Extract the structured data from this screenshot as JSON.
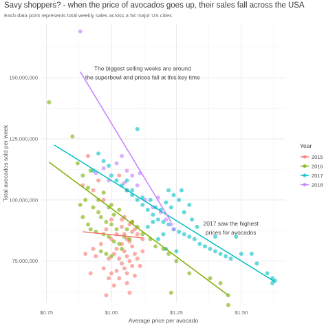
{
  "chart_data": {
    "type": "scatter",
    "title": "Savy shoppers? - when the price of avocados goes up, their sales fall across the USA",
    "subtitle": "Each data point represents total weekly sales across a 54 major US cities",
    "xlabel": "Average price per avocado",
    "ylabel": "Total avocados sold per week",
    "xlim": [
      0.73,
      1.67
    ],
    "ylim": [
      58000000,
      172000000
    ],
    "x_ticks": [
      0.75,
      1.0,
      1.25,
      1.5
    ],
    "x_tick_labels": [
      "$0.75",
      "$1.00",
      "$1.25",
      "$1.50"
    ],
    "y_ticks": [
      75000000,
      100000000,
      125000000,
      150000000
    ],
    "y_tick_labels": [
      "75,000,000",
      "100,000,000",
      "125,000,000",
      "150,000,000"
    ],
    "grid": true,
    "legend": {
      "title": "Year",
      "position": "right"
    },
    "annotations": [
      {
        "lines": [
          "The biggest selling weeks are around",
          "the superbowl and prices fall at this key time"
        ],
        "x": 1.12,
        "y": 153000000
      },
      {
        "lines": [
          "2017 saw the highest",
          "prices for avocados"
        ],
        "x": 1.46,
        "y": 89500000
      }
    ],
    "series": [
      {
        "name": "2015",
        "color": "#F8766D",
        "points": [
          [
            0.91,
            118
          ],
          [
            0.95,
            108
          ],
          [
            0.93,
            104
          ],
          [
            0.89,
            106
          ],
          [
            0.97,
            100
          ],
          [
            1.03,
            110
          ],
          [
            1.06,
            104
          ],
          [
            0.98,
            88
          ],
          [
            1.04,
            89
          ],
          [
            1.07,
            90
          ],
          [
            1.05,
            86
          ],
          [
            1.08,
            87
          ],
          [
            1.06,
            84
          ],
          [
            1.09,
            88
          ],
          [
            1.04,
            82
          ],
          [
            1.07,
            83
          ],
          [
            1.02,
            80
          ],
          [
            1.05,
            79
          ],
          [
            1.08,
            81
          ],
          [
            1.01,
            78
          ],
          [
            1.03,
            76
          ],
          [
            1.06,
            77
          ],
          [
            1.09,
            78
          ],
          [
            0.99,
            76
          ],
          [
            1.04,
            74
          ],
          [
            1.07,
            75
          ],
          [
            1.05,
            72
          ],
          [
            1.08,
            73
          ],
          [
            1.02,
            71
          ],
          [
            1.06,
            70
          ],
          [
            1.1,
            76
          ],
          [
            1.12,
            79
          ],
          [
            0.9,
            78
          ],
          [
            0.94,
            77
          ],
          [
            0.97,
            72
          ],
          [
            1.0,
            70
          ],
          [
            1.03,
            68
          ],
          [
            0.99,
            68
          ],
          [
            1.06,
            66
          ],
          [
            1.07,
            62
          ],
          [
            0.98,
            61
          ],
          [
            1.01,
            65
          ],
          [
            1.09,
            69
          ],
          [
            1.11,
            73
          ],
          [
            0.96,
            82
          ],
          [
            1.0,
            84
          ],
          [
            1.02,
            86
          ],
          [
            1.04,
            92
          ],
          [
            1.1,
            86
          ],
          [
            1.12,
            84
          ],
          [
            0.93,
            80
          ],
          [
            1.05,
            93
          ],
          [
            1.08,
            91
          ],
          [
            0.92,
            70
          ],
          [
            1.0,
            92
          ]
        ]
      },
      {
        "name": "2016",
        "color": "#7CAE00",
        "points": [
          [
            0.76,
            140
          ],
          [
            0.85,
            126
          ],
          [
            0.87,
            115
          ],
          [
            0.89,
            110
          ],
          [
            0.91,
            105
          ],
          [
            0.92,
            112
          ],
          [
            0.9,
            100
          ],
          [
            0.93,
            97
          ],
          [
            0.95,
            95
          ],
          [
            0.88,
            98
          ],
          [
            0.96,
            93
          ],
          [
            0.98,
            91
          ],
          [
            1.0,
            90
          ],
          [
            1.02,
            88
          ],
          [
            0.97,
            86
          ],
          [
            0.99,
            85
          ],
          [
            1.01,
            83
          ],
          [
            0.94,
            87
          ],
          [
            1.03,
            82
          ],
          [
            1.04,
            80
          ],
          [
            0.96,
            79
          ],
          [
            0.98,
            78
          ],
          [
            1.0,
            77
          ],
          [
            0.91,
            90
          ],
          [
            0.92,
            88
          ],
          [
            0.89,
            93
          ],
          [
            1.05,
            85
          ],
          [
            1.06,
            88
          ],
          [
            1.07,
            84
          ],
          [
            0.99,
            97
          ],
          [
            1.01,
            94
          ],
          [
            1.03,
            96
          ],
          [
            1.08,
            91
          ],
          [
            1.1,
            89
          ],
          [
            1.12,
            86
          ],
          [
            1.15,
            84
          ],
          [
            1.17,
            81
          ],
          [
            1.2,
            80
          ],
          [
            1.22,
            78
          ],
          [
            1.25,
            75
          ],
          [
            1.3,
            70
          ],
          [
            1.38,
            68
          ],
          [
            1.42,
            66
          ],
          [
            1.45,
            61
          ],
          [
            1.45,
            57
          ],
          [
            1.23,
            62
          ],
          [
            0.97,
            103
          ],
          [
            0.95,
            100
          ],
          [
            1.0,
            98
          ]
        ]
      },
      {
        "name": "2017",
        "color": "#00BFC4",
        "points": [
          [
            1.1,
            129
          ],
          [
            0.95,
            119
          ],
          [
            0.97,
            116
          ],
          [
            0.99,
            114
          ],
          [
            0.93,
            112
          ],
          [
            1.0,
            110
          ],
          [
            1.02,
            108
          ],
          [
            1.04,
            106
          ],
          [
            1.06,
            104
          ],
          [
            1.08,
            102
          ],
          [
            1.1,
            100
          ],
          [
            1.12,
            98
          ],
          [
            1.14,
            96
          ],
          [
            1.16,
            94
          ],
          [
            1.18,
            92
          ],
          [
            1.2,
            91
          ],
          [
            1.22,
            90
          ],
          [
            1.24,
            88
          ],
          [
            1.26,
            87
          ],
          [
            1.28,
            86
          ],
          [
            1.3,
            85
          ],
          [
            1.32,
            84
          ],
          [
            1.34,
            82
          ],
          [
            1.36,
            81
          ],
          [
            1.38,
            80
          ],
          [
            1.4,
            79
          ],
          [
            1.42,
            78
          ],
          [
            1.44,
            77
          ],
          [
            1.46,
            76
          ],
          [
            1.5,
            78
          ],
          [
            1.56,
            74
          ],
          [
            1.6,
            70
          ],
          [
            1.62,
            68
          ],
          [
            1.63,
            67
          ],
          [
            1.62,
            66
          ],
          [
            1.22,
            104
          ],
          [
            1.24,
            102
          ],
          [
            1.26,
            100
          ],
          [
            1.23,
            97
          ],
          [
            1.28,
            95
          ],
          [
            1.19,
            96
          ],
          [
            1.21,
            99
          ],
          [
            1.27,
            104
          ],
          [
            1.2,
            86
          ],
          [
            1.18,
            84
          ],
          [
            1.21,
            80
          ],
          [
            1.25,
            79
          ],
          [
            1.14,
            89
          ],
          [
            1.16,
            91
          ],
          [
            1.12,
            101
          ],
          [
            1.08,
            104
          ],
          [
            1.06,
            108
          ],
          [
            1.3,
            98
          ],
          [
            1.31,
            92
          ],
          [
            1.33,
            89
          ],
          [
            1.4,
            85
          ],
          [
            1.48,
            85
          ],
          [
            1.54,
            78
          ],
          [
            1.17,
            97
          ],
          [
            1.15,
            100
          ]
        ]
      },
      {
        "name": "2018",
        "color": "#C77CFF",
        "points": [
          [
            0.88,
            169
          ],
          [
            0.94,
            111
          ],
          [
            0.99,
            108
          ],
          [
            1.02,
            115
          ],
          [
            1.04,
            118
          ],
          [
            1.06,
            112
          ],
          [
            1.08,
            110
          ],
          [
            1.1,
            106
          ],
          [
            1.13,
            100
          ],
          [
            1.16,
            97
          ],
          [
            1.19,
            95
          ],
          [
            1.21,
            92
          ],
          [
            1.23,
            90
          ],
          [
            1.24,
            88
          ],
          [
            1.18,
            101
          ],
          [
            1.11,
            111
          ],
          [
            1.05,
            107
          ],
          [
            0.97,
            113
          ]
        ]
      }
    ],
    "trend_lines": [
      {
        "name": "2015",
        "color": "#F8766D",
        "from": [
          0.89,
          87
        ],
        "to": [
          1.12,
          84.5
        ]
      },
      {
        "name": "2016",
        "color": "#7CAE00",
        "from": [
          0.76,
          115.5
        ],
        "to": [
          1.45,
          61
        ]
      },
      {
        "name": "2017",
        "color": "#00BFC4",
        "from": [
          0.78,
          122.5
        ],
        "to": [
          1.63,
          66.5
        ]
      },
      {
        "name": "2018",
        "color": "#C77CFF",
        "from": [
          0.88,
          152.5
        ],
        "to": [
          1.23,
          91
        ]
      }
    ],
    "y_unit_multiplier": 1000000
  }
}
